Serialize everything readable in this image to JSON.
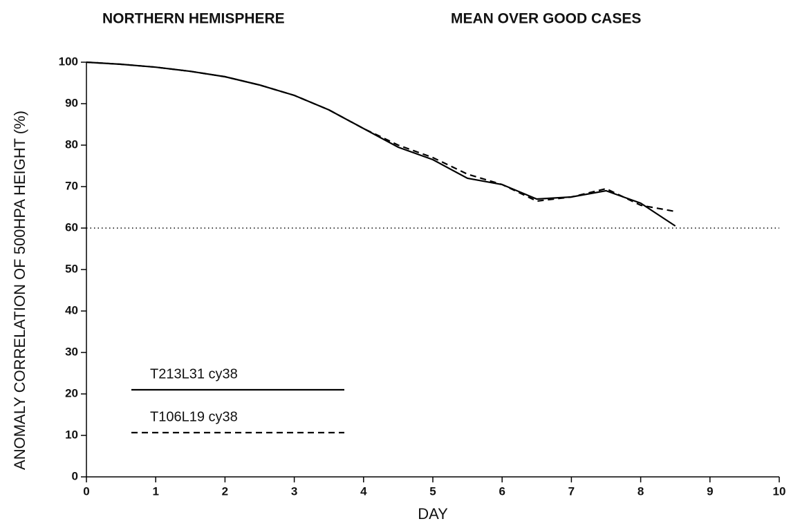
{
  "chart_data": {
    "type": "line",
    "title": "NORTHERN HEMISPHERE",
    "subtitle": "MEAN OVER GOOD CASES",
    "x_label": "DAY",
    "y_label": "ANOMALY CORRELATION OF 500HPA HEIGHT (%)",
    "x": [
      0,
      0.5,
      1,
      1.5,
      2,
      2.5,
      3,
      3.5,
      4,
      4.5,
      5,
      5.5,
      6,
      6.5,
      7,
      7.5,
      8,
      8.5
    ],
    "series": [
      {
        "name": "T213L31 cy38",
        "color": "#000000",
        "line_style": "solid",
        "values": [
          100,
          99.5,
          98.8,
          97.8,
          96.5,
          94.5,
          92,
          88.5,
          84,
          79.5,
          76.5,
          72,
          70.5,
          67,
          67.5,
          69,
          66,
          60.5
        ]
      },
      {
        "name": "T106L19 cy38",
        "color": "#000000",
        "line_style": "dashed",
        "values": [
          100,
          99.5,
          98.8,
          97.8,
          96.5,
          94.5,
          92,
          88.5,
          84,
          80,
          77,
          73,
          70.5,
          66.5,
          67.5,
          69.5,
          65.5,
          64
        ]
      }
    ],
    "reference_line": 60,
    "xlim": [
      0,
      10
    ],
    "xticks": [
      0,
      1,
      2,
      3,
      4,
      5,
      6,
      7,
      8,
      9,
      10
    ],
    "ylim": [
      0,
      100
    ],
    "yticks": [
      0,
      10,
      20,
      30,
      40,
      50,
      60,
      70,
      80,
      90,
      100
    ],
    "legend": "lower left",
    "grid": false
  }
}
